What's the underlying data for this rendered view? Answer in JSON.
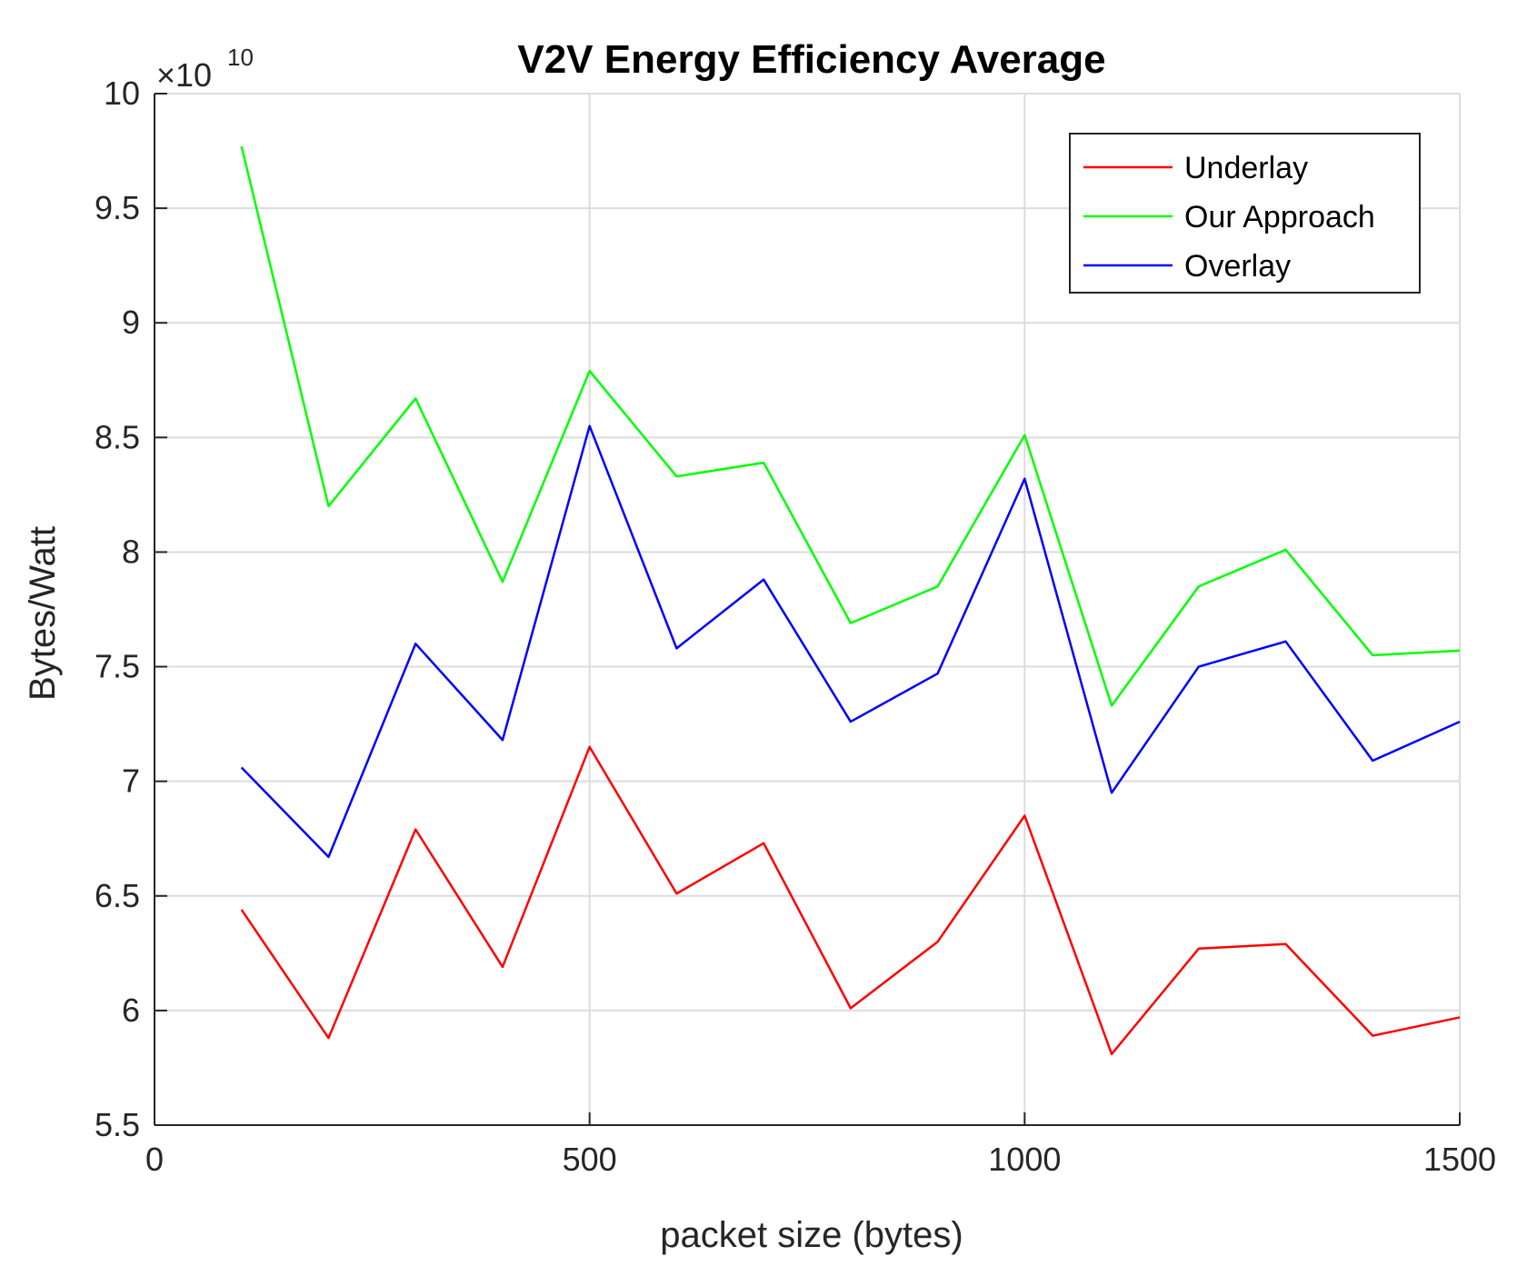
{
  "chart_data": {
    "type": "line",
    "title": "V2V Energy Efficiency Average",
    "xlabel": "packet size (bytes)",
    "ylabel": "Bytes/Watt",
    "y_exponent_prefix": "×10",
    "y_exponent_power": "10",
    "xlim": [
      0,
      1500
    ],
    "ylim": [
      5.5,
      10
    ],
    "xticks": [
      0,
      500,
      1000,
      1500
    ],
    "xtick_labels": [
      "0",
      "500",
      "1000",
      "1500"
    ],
    "yticks": [
      5.5,
      6,
      6.5,
      7,
      7.5,
      8,
      8.5,
      9,
      9.5,
      10
    ],
    "ytick_labels": [
      "5.5",
      "6",
      "6.5",
      "7",
      "7.5",
      "8",
      "8.5",
      "9",
      "9.5",
      "10"
    ],
    "grid": true,
    "legend_position": "top-right",
    "x": [
      100,
      200,
      300,
      400,
      500,
      600,
      700,
      800,
      900,
      1000,
      1100,
      1200,
      1300,
      1400,
      1500
    ],
    "series": [
      {
        "name": "Underlay",
        "color": "#ff0000",
        "values": [
          6.44,
          5.88,
          6.79,
          6.19,
          7.15,
          6.51,
          6.73,
          6.01,
          6.3,
          6.85,
          5.81,
          6.27,
          6.29,
          5.89,
          5.97
        ]
      },
      {
        "name": "Our Approach",
        "color": "#00ff00",
        "values": [
          9.77,
          8.2,
          8.67,
          7.87,
          8.79,
          8.33,
          8.39,
          7.69,
          7.85,
          8.51,
          7.33,
          7.85,
          8.01,
          7.55,
          7.57
        ]
      },
      {
        "name": "Overlay",
        "color": "#0000ff",
        "values": [
          7.06,
          6.67,
          7.6,
          7.18,
          8.55,
          7.58,
          7.88,
          7.26,
          7.47,
          8.32,
          6.95,
          7.5,
          7.61,
          7.09,
          7.26
        ]
      }
    ]
  }
}
